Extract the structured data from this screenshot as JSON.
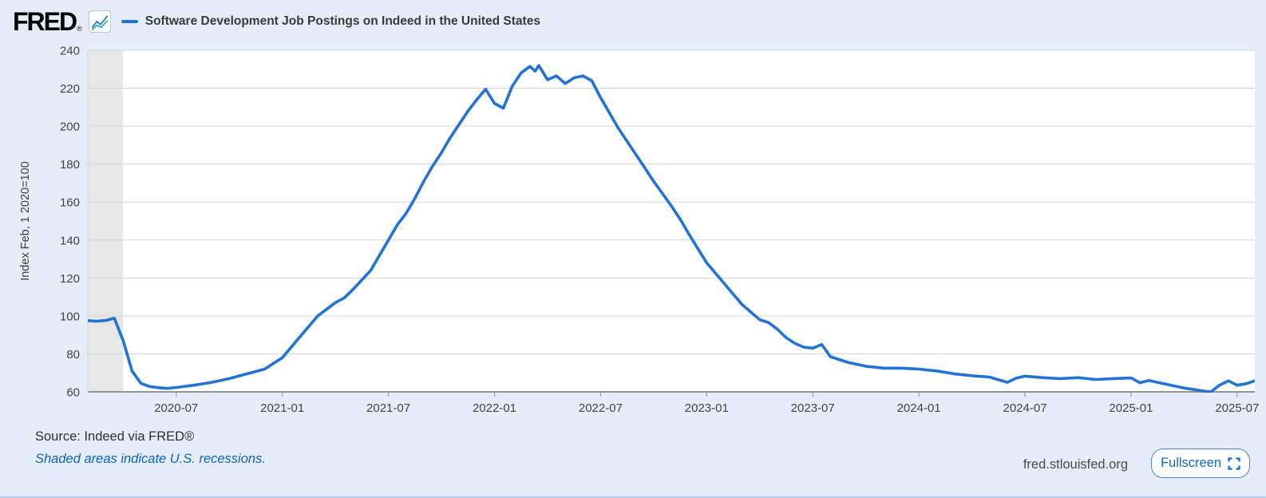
{
  "header": {
    "logo_text": "FRED",
    "logo_reg": "®",
    "legend_label": "Software Development Job Postings on Indeed in the United States"
  },
  "footer": {
    "source": "Source: Indeed via FRED®",
    "recession_note": "Shaded areas indicate U.S. recessions.",
    "site": "fred.stlouisfed.org",
    "fullscreen_label": "Fullscreen"
  },
  "icons": {
    "logo_chart": "line-chart-icon",
    "fullscreen": "fullscreen-corners-icon"
  },
  "colors": {
    "accent": "#2173d6",
    "logo_teal": "#1fa58c",
    "link": "#1060c4",
    "page_bg": "#e5eef8",
    "plot_bg": "#ffffff",
    "recession": "#e7e7e7",
    "grid": "#d5d5d5",
    "axis": "#949494",
    "tick_text": "#434343"
  },
  "chart_data": {
    "type": "line",
    "series_name": "Software Development Job Postings on Indeed in the United States",
    "ylabel": "Index Feb, 1 2020=100",
    "yticks": [
      60,
      80,
      100,
      120,
      140,
      160,
      180,
      200,
      220,
      240
    ],
    "ylim": [
      60,
      240
    ],
    "xtick_labels": [
      "2020-07",
      "2021-01",
      "2021-07",
      "2022-01",
      "2022-07",
      "2023-01",
      "2023-07",
      "2024-01",
      "2024-07",
      "2025-01",
      "2025-07"
    ],
    "x_start": "2020-02",
    "x_end_months_after_start": 66,
    "grid": true,
    "legend_position": "top",
    "recession_bands": [
      {
        "start": "2020-02",
        "end": "2020-04"
      }
    ],
    "points": [
      [
        "2020-02",
        97.5
      ],
      [
        "2020-02-16",
        97.2
      ],
      [
        "2020-03",
        97.6
      ],
      [
        "2020-03-16",
        98.8
      ],
      [
        "2020-04",
        87
      ],
      [
        "2020-04-16",
        71
      ],
      [
        "2020-05",
        64.5
      ],
      [
        "2020-05-16",
        62.8
      ],
      [
        "2020-06",
        62.2
      ],
      [
        "2020-06-16",
        61.8
      ],
      [
        "2020-07",
        62.3
      ],
      [
        "2020-08",
        63.5
      ],
      [
        "2020-09",
        65
      ],
      [
        "2020-10",
        67
      ],
      [
        "2020-11",
        69.5
      ],
      [
        "2020-12",
        72
      ],
      [
        "2021-01",
        78
      ],
      [
        "2021-02",
        89
      ],
      [
        "2021-03",
        100
      ],
      [
        "2021-04",
        107
      ],
      [
        "2021-04-16",
        109.5
      ],
      [
        "2021-05",
        114
      ],
      [
        "2021-06",
        124
      ],
      [
        "2021-07",
        140
      ],
      [
        "2021-07-16",
        148
      ],
      [
        "2021-08",
        154
      ],
      [
        "2021-08-16",
        162
      ],
      [
        "2021-09",
        171
      ],
      [
        "2021-09-16",
        179
      ],
      [
        "2021-10",
        186
      ],
      [
        "2021-10-16",
        194
      ],
      [
        "2021-11",
        201
      ],
      [
        "2021-11-16",
        208
      ],
      [
        "2021-12",
        214
      ],
      [
        "2021-12-16",
        219.5
      ],
      [
        "2022-01",
        212
      ],
      [
        "2022-01-16",
        209.5
      ],
      [
        "2022-02",
        221
      ],
      [
        "2022-02-16",
        228
      ],
      [
        "2022-03",
        231.5
      ],
      [
        "2022-03-10",
        229
      ],
      [
        "2022-03-16",
        232
      ],
      [
        "2022-03-24",
        228
      ],
      [
        "2022-04",
        224.5
      ],
      [
        "2022-04-16",
        226.5
      ],
      [
        "2022-05",
        222.5
      ],
      [
        "2022-05-16",
        225.5
      ],
      [
        "2022-06",
        226.5
      ],
      [
        "2022-06-16",
        224
      ],
      [
        "2022-07",
        215
      ],
      [
        "2022-07-16",
        207
      ],
      [
        "2022-08",
        199
      ],
      [
        "2022-08-16",
        192
      ],
      [
        "2022-09",
        185
      ],
      [
        "2022-09-16",
        178
      ],
      [
        "2022-10",
        171
      ],
      [
        "2022-10-16",
        164.5
      ],
      [
        "2022-11",
        158
      ],
      [
        "2022-11-16",
        151
      ],
      [
        "2022-12",
        143
      ],
      [
        "2022-12-16",
        135.5
      ],
      [
        "2023-01",
        128
      ],
      [
        "2023-02",
        117
      ],
      [
        "2023-03",
        106
      ],
      [
        "2023-04",
        98
      ],
      [
        "2023-04-16",
        96.5
      ],
      [
        "2023-05",
        93
      ],
      [
        "2023-05-16",
        88.5
      ],
      [
        "2023-06",
        85.5
      ],
      [
        "2023-06-16",
        83.5
      ],
      [
        "2023-07",
        83
      ],
      [
        "2023-07-16",
        85
      ],
      [
        "2023-08",
        78.5
      ],
      [
        "2023-09",
        75.5
      ],
      [
        "2023-10",
        73.5
      ],
      [
        "2023-11",
        72.5
      ],
      [
        "2023-12",
        72.5
      ],
      [
        "2024-01",
        72
      ],
      [
        "2024-02",
        71
      ],
      [
        "2024-03",
        69.5
      ],
      [
        "2024-04",
        68.5
      ],
      [
        "2024-05",
        67.8
      ],
      [
        "2024-06",
        65
      ],
      [
        "2024-06-16",
        67.2
      ],
      [
        "2024-07",
        68.3
      ],
      [
        "2024-08",
        67.5
      ],
      [
        "2024-09",
        67
      ],
      [
        "2024-10",
        67.5
      ],
      [
        "2024-11",
        66.5
      ],
      [
        "2024-12",
        67
      ],
      [
        "2025-01",
        67.3
      ],
      [
        "2025-01-16",
        64.8
      ],
      [
        "2025-02",
        66
      ],
      [
        "2025-03",
        64
      ],
      [
        "2025-04",
        62
      ],
      [
        "2025-05",
        60.6
      ],
      [
        "2025-05-16",
        59.9
      ],
      [
        "2025-06",
        63.5
      ],
      [
        "2025-06-16",
        65.8
      ],
      [
        "2025-07",
        63.5
      ],
      [
        "2025-07-16",
        64.3
      ],
      [
        "2025-08",
        65.8
      ]
    ]
  }
}
